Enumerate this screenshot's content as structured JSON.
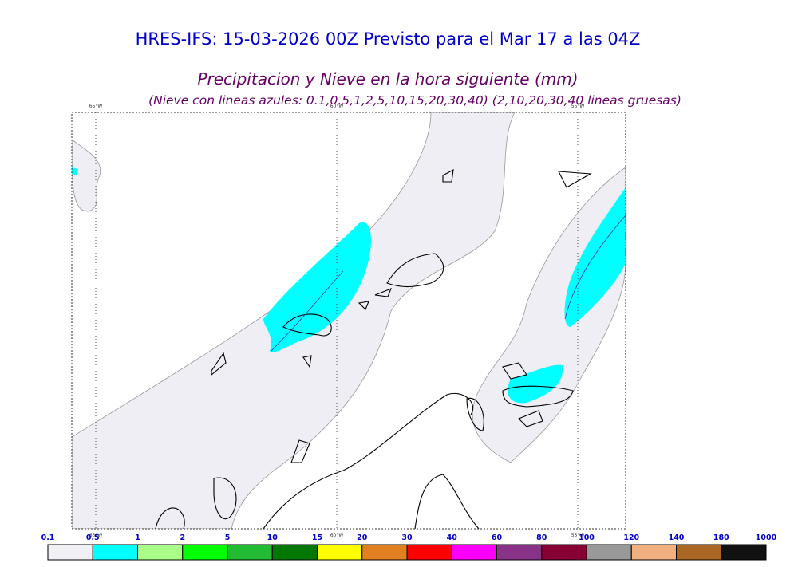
{
  "header": {
    "title": "HRES-IFS: 15-03-2026 00Z Previsto para el Mar 17 a las 04Z",
    "subtitle": "Precipitacion y Nieve en la hora siguiente (mm)",
    "note": "(Nieve con lineas azules: 0.1,0.5,1,2,5,10,15,20,30,40)  (2,10,20,30,40 lineas gruesas)"
  },
  "map": {
    "longitudes": [
      "65°W",
      "60°W",
      "55°W"
    ]
  },
  "legend": {
    "levels": [
      "0.1",
      "0.5",
      "1",
      "2",
      "5",
      "10",
      "15",
      "20",
      "30",
      "40",
      "60",
      "80",
      "100",
      "120",
      "140",
      "180",
      "1000"
    ],
    "colors": [
      "#f0f0f5",
      "#00ffff",
      "#aaff88",
      "#00ff00",
      "#22bb33",
      "#007700",
      "#ffff00",
      "#e08020",
      "#ff0000",
      "#ff00ff",
      "#883388",
      "#880033",
      "#999999",
      "#f0b080",
      "#aa6622",
      "#111111"
    ]
  }
}
